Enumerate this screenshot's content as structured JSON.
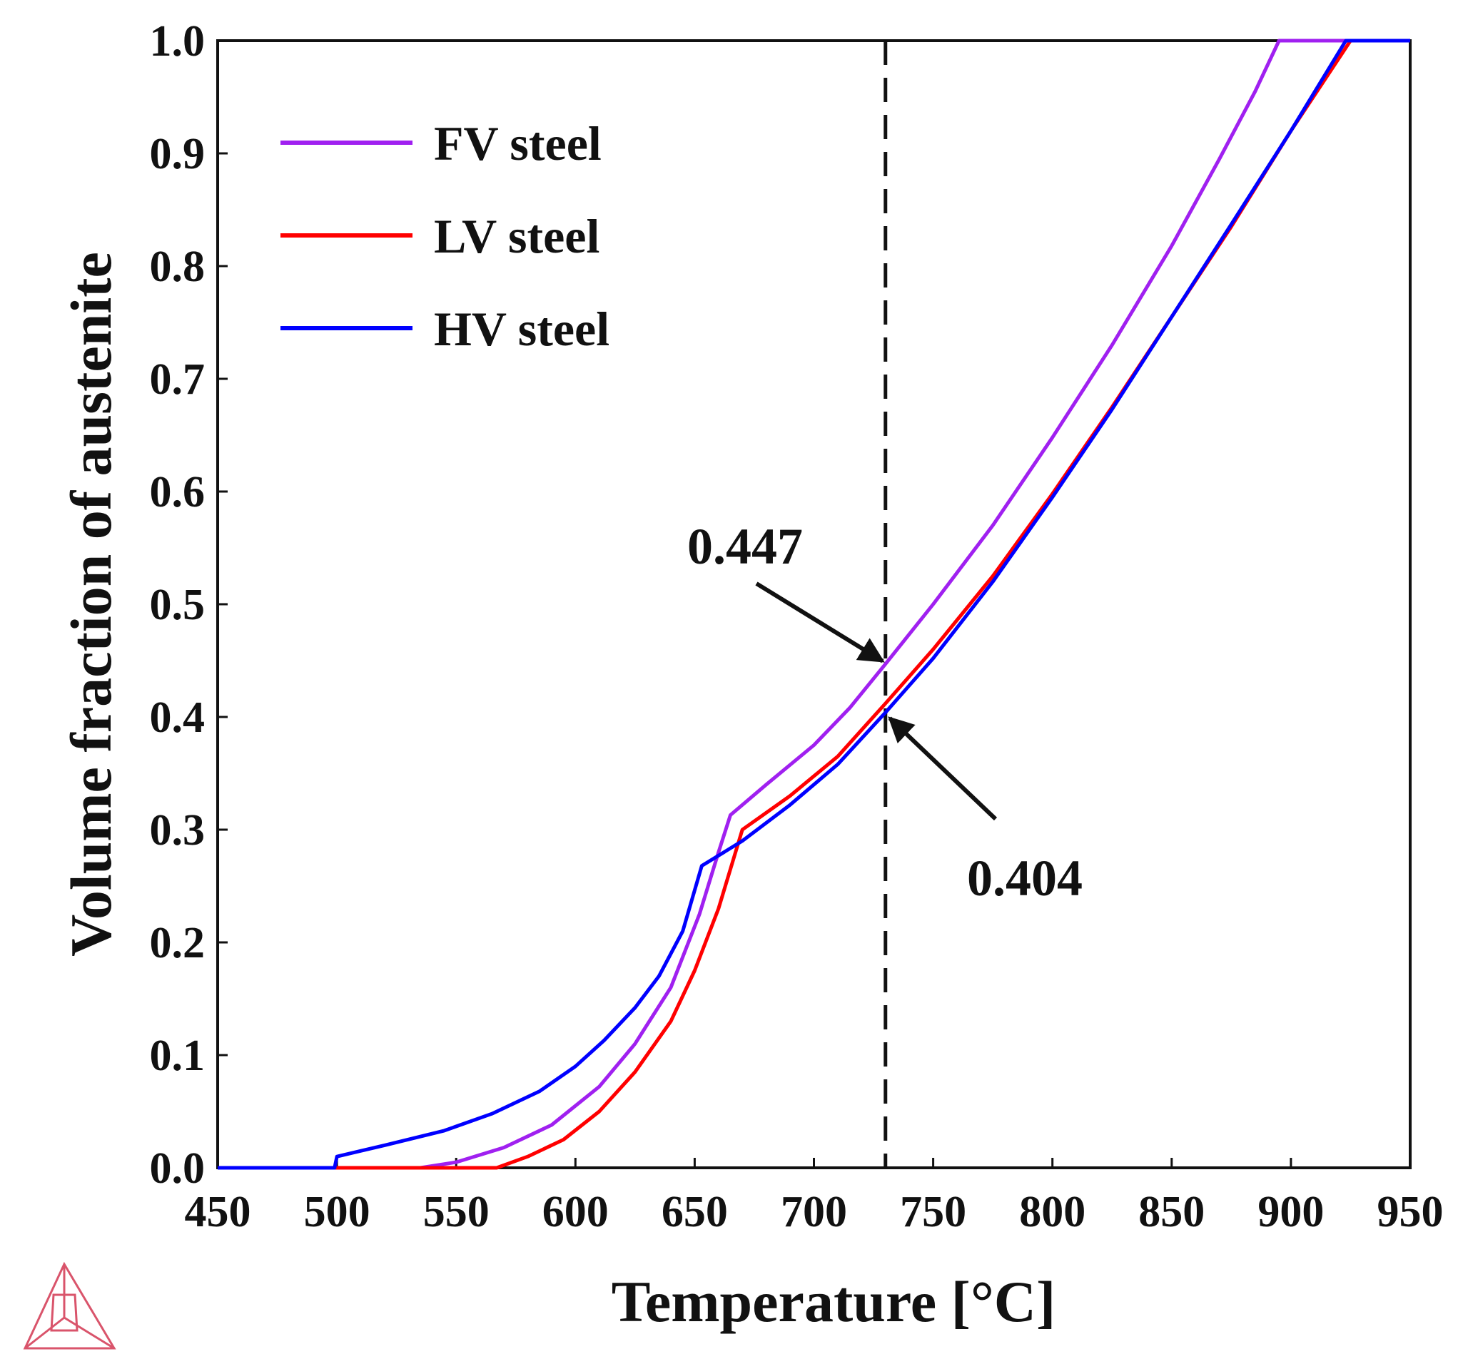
{
  "chart_data": {
    "type": "line",
    "title": "",
    "xlabel": "Temperature [°C]",
    "ylabel": "Volume fraction of austenite",
    "xlim": [
      450,
      950
    ],
    "ylim": [
      0.0,
      1.0
    ],
    "x_ticks": [
      450,
      500,
      550,
      600,
      650,
      700,
      750,
      800,
      850,
      900,
      950
    ],
    "x_tick_labels": [
      "450",
      "500",
      "550",
      "600",
      "650",
      "700",
      "750",
      "800",
      "850",
      "900",
      "950"
    ],
    "y_ticks": [
      0.0,
      0.1,
      0.2,
      0.3,
      0.4,
      0.5,
      0.6,
      0.7,
      0.8,
      0.9,
      1.0
    ],
    "y_tick_labels": [
      "0.0",
      "0.1",
      "0.2",
      "0.3",
      "0.4",
      "0.5",
      "0.6",
      "0.7",
      "0.8",
      "0.9",
      "1.0"
    ],
    "grid": false,
    "legend_position": "top-left",
    "reference_line": {
      "x": 730,
      "style": "dashed"
    },
    "series": [
      {
        "name": "FV steel",
        "color": "#a020f0",
        "points": [
          [
            450,
            0.0
          ],
          [
            535,
            0.0
          ],
          [
            550,
            0.005
          ],
          [
            570,
            0.018
          ],
          [
            590,
            0.038
          ],
          [
            610,
            0.072
          ],
          [
            625,
            0.11
          ],
          [
            640,
            0.16
          ],
          [
            652,
            0.225
          ],
          [
            660,
            0.28
          ],
          [
            665,
            0.313
          ],
          [
            680,
            0.34
          ],
          [
            700,
            0.375
          ],
          [
            715,
            0.408
          ],
          [
            730,
            0.447
          ],
          [
            750,
            0.5
          ],
          [
            775,
            0.57
          ],
          [
            800,
            0.648
          ],
          [
            825,
            0.73
          ],
          [
            850,
            0.818
          ],
          [
            870,
            0.895
          ],
          [
            885,
            0.955
          ],
          [
            895,
            1.0
          ],
          [
            950,
            1.0
          ]
        ]
      },
      {
        "name": "LV steel",
        "color": "#ff0000",
        "points": [
          [
            450,
            0.0
          ],
          [
            567,
            0.0
          ],
          [
            580,
            0.01
          ],
          [
            595,
            0.025
          ],
          [
            610,
            0.05
          ],
          [
            625,
            0.085
          ],
          [
            640,
            0.13
          ],
          [
            650,
            0.175
          ],
          [
            660,
            0.23
          ],
          [
            665,
            0.265
          ],
          [
            670,
            0.3
          ],
          [
            690,
            0.33
          ],
          [
            710,
            0.365
          ],
          [
            730,
            0.412
          ],
          [
            750,
            0.46
          ],
          [
            775,
            0.525
          ],
          [
            800,
            0.598
          ],
          [
            825,
            0.675
          ],
          [
            850,
            0.755
          ],
          [
            875,
            0.835
          ],
          [
            900,
            0.92
          ],
          [
            925,
            1.0
          ],
          [
            950,
            1.0
          ]
        ]
      },
      {
        "name": "HV steel",
        "color": "#0000ff",
        "points": [
          [
            450,
            0.0
          ],
          [
            499,
            0.0
          ],
          [
            500,
            0.01
          ],
          [
            520,
            0.02
          ],
          [
            545,
            0.033
          ],
          [
            565,
            0.048
          ],
          [
            585,
            0.068
          ],
          [
            600,
            0.09
          ],
          [
            612,
            0.113
          ],
          [
            625,
            0.142
          ],
          [
            635,
            0.17
          ],
          [
            645,
            0.21
          ],
          [
            653,
            0.268
          ],
          [
            670,
            0.29
          ],
          [
            690,
            0.322
          ],
          [
            710,
            0.358
          ],
          [
            730,
            0.404
          ],
          [
            750,
            0.452
          ],
          [
            775,
            0.52
          ],
          [
            800,
            0.595
          ],
          [
            825,
            0.673
          ],
          [
            850,
            0.755
          ],
          [
            875,
            0.837
          ],
          [
            900,
            0.92
          ],
          [
            923,
            1.0
          ],
          [
            950,
            1.0
          ]
        ]
      }
    ],
    "annotations": [
      {
        "text": "0.447",
        "x": 730,
        "y": 0.447
      },
      {
        "text": "0.404",
        "x": 730,
        "y": 0.404
      }
    ]
  }
}
